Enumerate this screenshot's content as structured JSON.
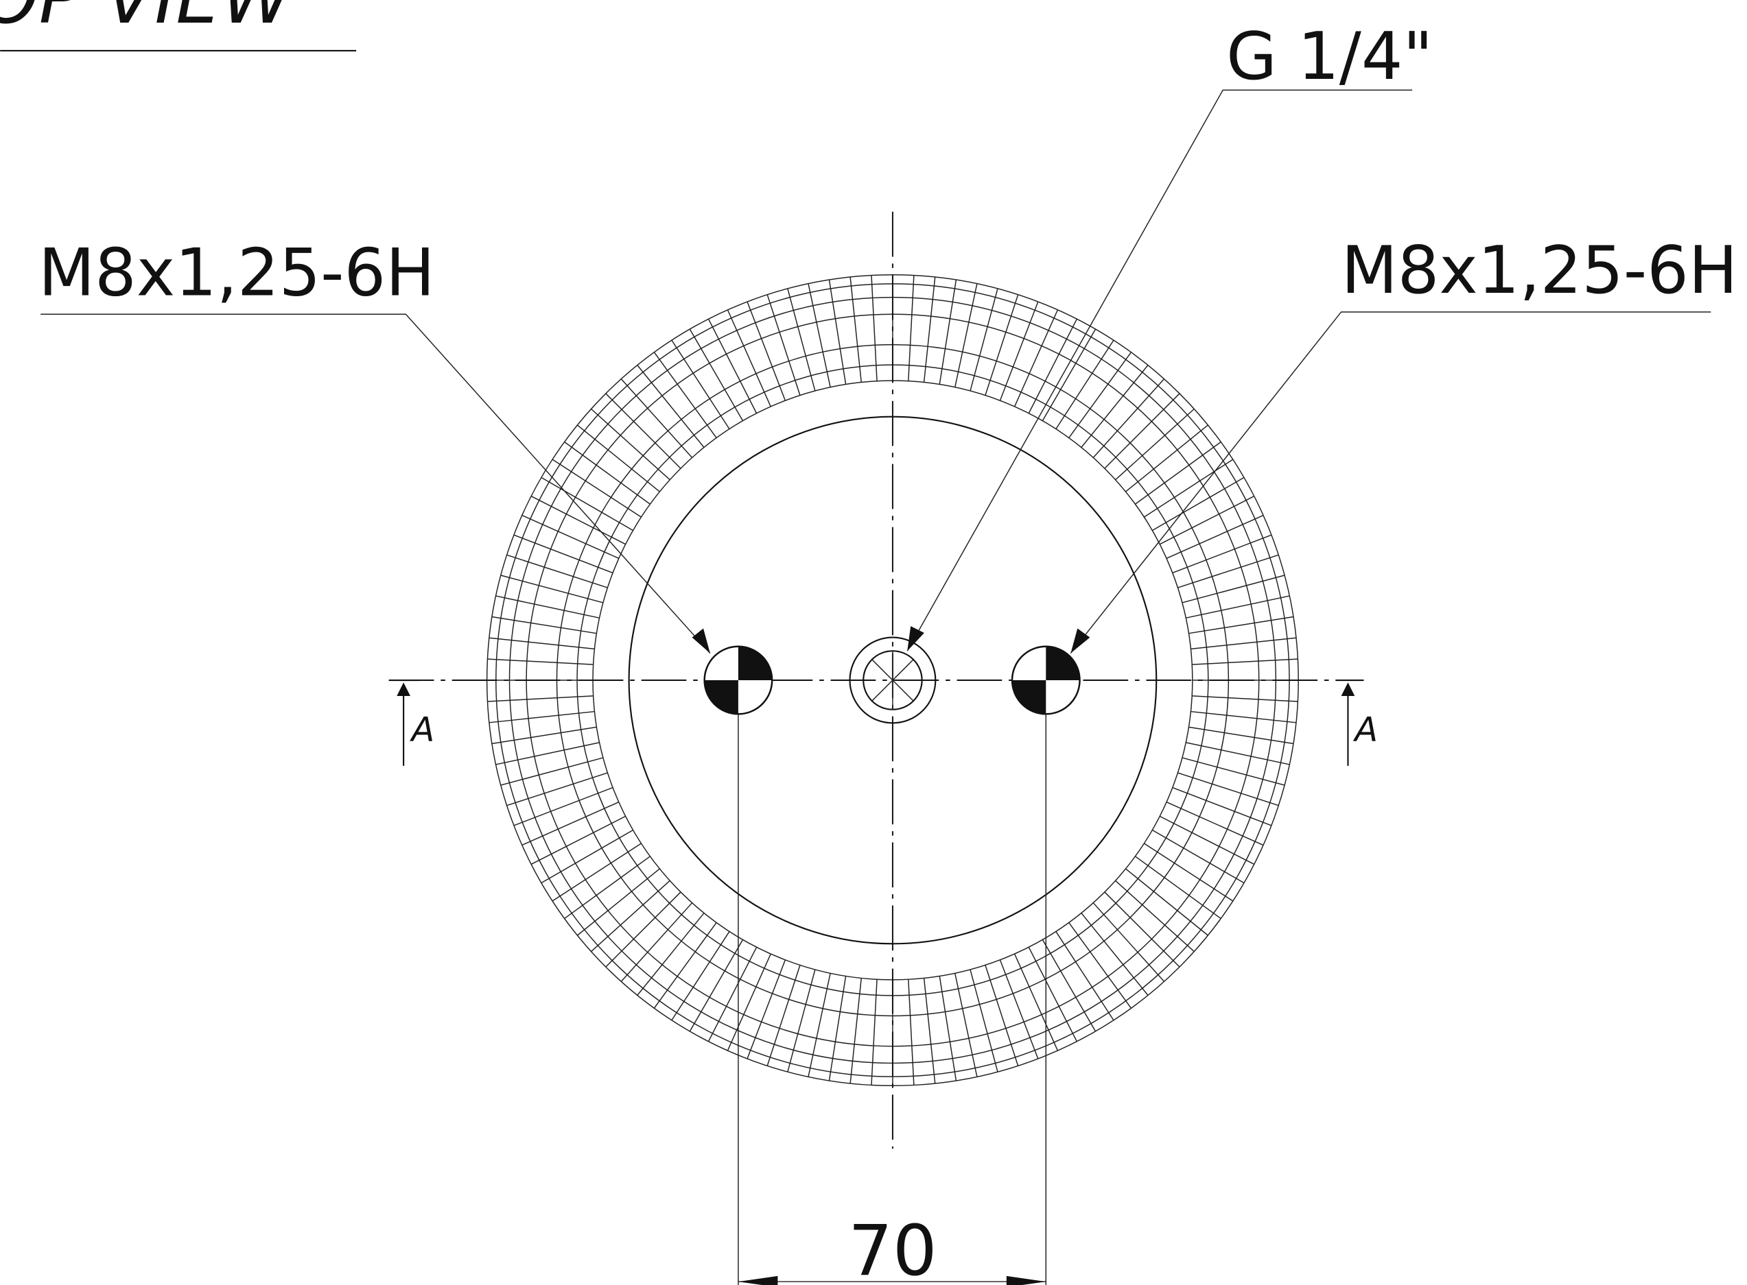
{
  "header": {
    "title": "TOP VIEW"
  },
  "callouts": [
    {
      "label": "M8x1,25-6H"
    },
    {
      "label": "G 1/4\""
    },
    {
      "label": "M8x1,25-6H"
    }
  ],
  "section_marks": [
    "A",
    "A"
  ],
  "dimension": {
    "label": "70"
  }
}
